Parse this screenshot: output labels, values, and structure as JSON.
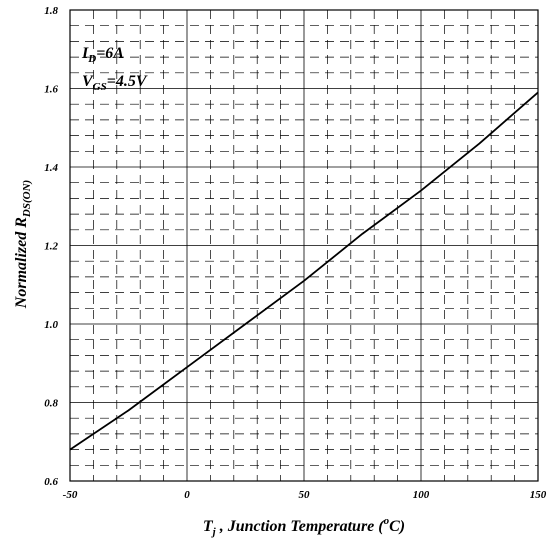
{
  "chart_data": {
    "type": "line",
    "title": "",
    "xlabel": {
      "main": "T",
      "sub": "j",
      "rest": " , Junction Temperature (",
      "sup": "o",
      "end": "C)"
    },
    "ylabel": {
      "main": "Normalized R",
      "sub": "DS(ON)"
    },
    "xlim": [
      -50,
      150
    ],
    "ylim": [
      0.6,
      1.8
    ],
    "xticks": [
      "-50",
      "0",
      "50",
      "100",
      "150"
    ],
    "yticks": [
      "0.6",
      "0.8",
      "1.0",
      "1.2",
      "1.4",
      "1.6",
      "1.8"
    ],
    "grid": true,
    "annotations": [
      {
        "main": "I",
        "sub": "D",
        "rest": "=6A"
      },
      {
        "main": "V",
        "sub": "GS",
        "rest": "=4.5V"
      }
    ],
    "series": [
      {
        "x": [
          -50,
          -25,
          0,
          25,
          50,
          75,
          100,
          125,
          150
        ],
        "values": [
          0.68,
          0.78,
          0.89,
          1.0,
          1.11,
          1.23,
          1.34,
          1.46,
          1.59
        ]
      }
    ]
  }
}
